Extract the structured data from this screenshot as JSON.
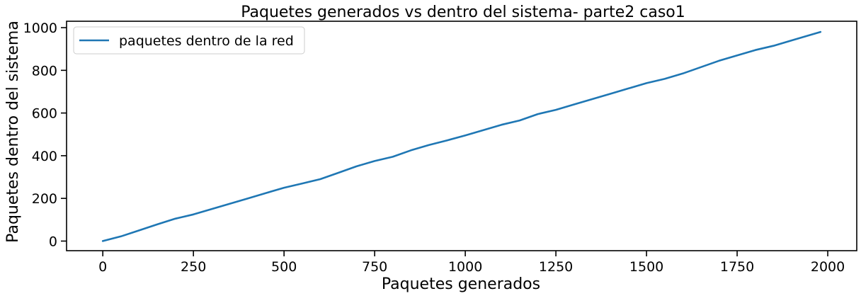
{
  "chart_data": {
    "type": "line",
    "title": "Paquetes generados vs dentro del sistema- parte2 caso1",
    "xlabel": "Paquetes generados",
    "ylabel": "Paquetes dentro del sistema",
    "xlim": [
      -100,
      2080
    ],
    "ylim": [
      -45,
      1030
    ],
    "xticks": [
      0,
      250,
      500,
      750,
      1000,
      1250,
      1500,
      1750,
      2000
    ],
    "yticks": [
      0,
      200,
      400,
      600,
      800,
      1000
    ],
    "grid": false,
    "legend_position": "top-left",
    "series": [
      {
        "name": "paquetes dentro de la red",
        "color": "#1f77b4",
        "x": [
          0,
          50,
          100,
          150,
          200,
          250,
          300,
          350,
          400,
          450,
          500,
          550,
          600,
          650,
          700,
          750,
          800,
          850,
          900,
          950,
          1000,
          1050,
          1100,
          1150,
          1200,
          1250,
          1300,
          1350,
          1400,
          1450,
          1500,
          1550,
          1600,
          1650,
          1700,
          1750,
          1800,
          1850,
          1900,
          1950,
          1980
        ],
        "y": [
          0,
          22,
          50,
          78,
          105,
          125,
          150,
          175,
          200,
          225,
          250,
          270,
          290,
          320,
          350,
          375,
          395,
          425,
          450,
          472,
          495,
          520,
          545,
          565,
          595,
          615,
          640,
          665,
          690,
          715,
          740,
          760,
          785,
          815,
          845,
          870,
          895,
          915,
          940,
          965,
          980
        ]
      }
    ]
  }
}
